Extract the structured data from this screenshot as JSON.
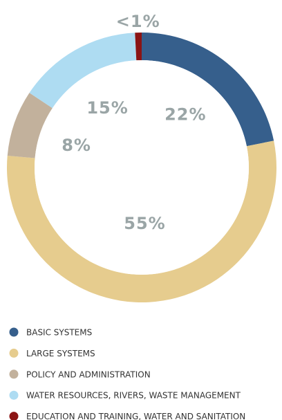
{
  "chart_data": {
    "type": "donut",
    "categories": [
      "BASIC SYSTEMS",
      "LARGE SYSTEMS",
      "POLICY AND ADMINISTRATION",
      "WATER RESOURCES, RIVERS, WASTE MANAGEMENT",
      "EDUCATION AND TRAINING, WATER AND SANITATION"
    ],
    "values": [
      22,
      55,
      8,
      15,
      0.8
    ],
    "value_labels": [
      "22%",
      "55%",
      "8%",
      "15%",
      "<1%"
    ],
    "colors": [
      "#365f8c",
      "#e6cc8e",
      "#c2b19c",
      "#aedcf2",
      "#8b1414"
    ],
    "legend": "bottom-left"
  }
}
